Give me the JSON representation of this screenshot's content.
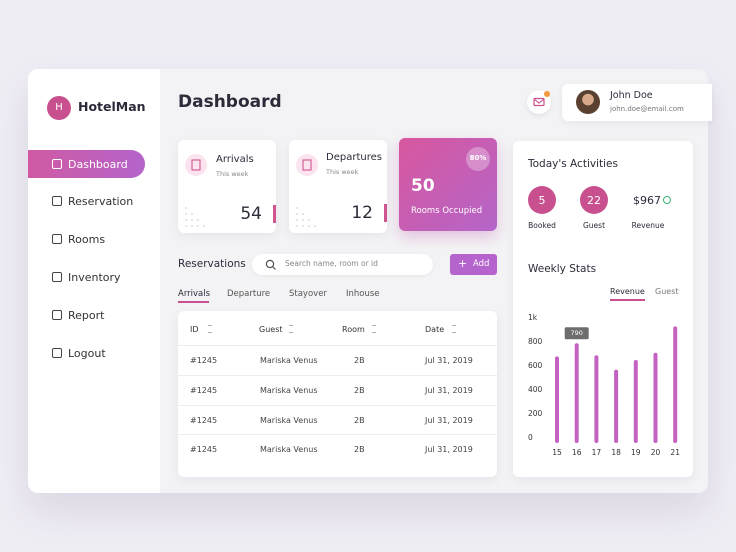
{
  "sidebar": {
    "logo_letter": "H",
    "brand": "HotelMan",
    "menu": [
      "Dashboard",
      "Reservation",
      "Rooms",
      "Inventory",
      "Report",
      "Logout"
    ]
  },
  "header": {
    "title": "Dashboard",
    "user": {
      "name": "John Doe",
      "email": "john.doe@email.com"
    }
  },
  "cards": [
    {
      "title": "Arrivals",
      "subtitle": "This week",
      "value": 54
    },
    {
      "title": "Departures",
      "subtitle": "This week",
      "value": 12
    }
  ],
  "occupied": {
    "percent": "80%",
    "value": 50,
    "label": "Rooms Occupied"
  },
  "reservations": {
    "title": "Reservations",
    "search_placeholder": "Search name, room or  id",
    "add": "Add",
    "tabs": [
      "Arrivals",
      "Departure",
      "Stayover",
      "Inhouse"
    ],
    "columns": [
      "ID",
      "Guest",
      "Room",
      "Date"
    ],
    "rows": [
      [
        "#1245",
        "Mariska Venus",
        "2B",
        "Jul 31, 2019"
      ],
      [
        "#1245",
        "Mariska Venus",
        "2B",
        "Jul 31, 2019"
      ],
      [
        "#1245",
        "Mariska Venus",
        "2B",
        "Jul 31, 2019"
      ],
      [
        "#1245",
        "Mariska Venus",
        "2B",
        "Jul 31, 2019"
      ]
    ]
  },
  "activities": {
    "title": "Today's Activities",
    "items": [
      {
        "value": 5,
        "label": "Booked"
      },
      {
        "value": 22,
        "label": "Guest"
      },
      {
        "value": "$967",
        "label": "Revenue"
      }
    ]
  },
  "weekly_stats": {
    "type": "bar",
    "title": "Weekly Stats",
    "tabs": [
      "Revenue",
      "Guest"
    ],
    "categories": [
      "15",
      "16",
      "17",
      "18",
      "19",
      "20",
      "21"
    ],
    "series": [
      {
        "color": "#c462c2",
        "values": [
          680,
          790,
          690,
          570,
          650,
          710,
          930
        ]
      }
    ],
    "ylim": [
      0,
      1000
    ],
    "yticks": [
      0,
      200,
      400,
      600,
      800,
      {
        "value": 1000,
        "label": "1k"
      }
    ]
  }
}
